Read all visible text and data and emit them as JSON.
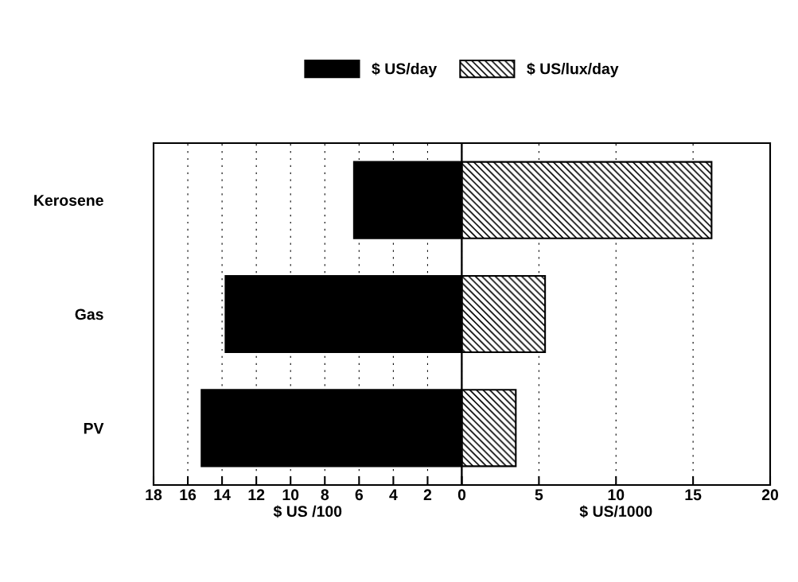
{
  "chart_data": [
    {
      "type": "bar",
      "orientation": "horizontal",
      "categories": [
        "Kerosene",
        "Gas",
        "PV"
      ],
      "xlabel": "$ US /100",
      "series": [
        {
          "name": "$ US/day",
          "color": "#000000",
          "values": [
            6.3,
            13.8,
            15.2
          ]
        }
      ],
      "xlim": [
        18,
        0
      ],
      "xticks": [
        18,
        16,
        14,
        12,
        10,
        8,
        6,
        4,
        2,
        {
          "value": 0,
          "label": null
        }
      ],
      "grid": "x",
      "legend": "top"
    },
    {
      "type": "bar",
      "orientation": "horizontal",
      "categories": [
        null,
        null,
        null
      ],
      "xlabel": "$ US/1000",
      "series": [
        {
          "name": "$ US/lux/day",
          "color": "#000000",
          "values": [
            16.2,
            5.4,
            3.5
          ]
        }
      ],
      "xlim": [
        0,
        20
      ],
      "xticks": [
        0,
        5,
        10,
        15,
        20
      ],
      "grid": "x",
      "legend": "top"
    }
  ]
}
